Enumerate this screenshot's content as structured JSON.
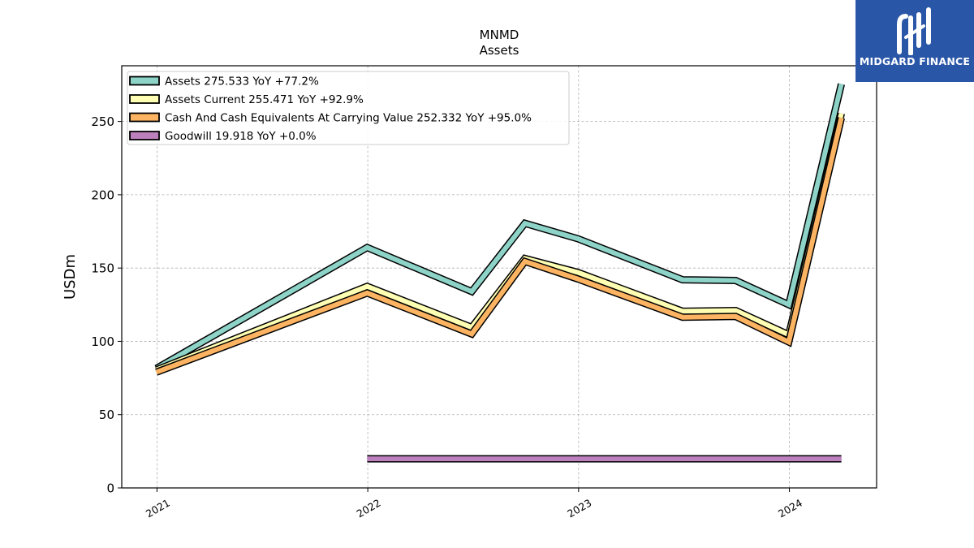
{
  "chart_data": {
    "type": "line",
    "title": "MNMD",
    "subtitle": "Assets",
    "ylabel": "USDm",
    "xlabel": "",
    "ylim": [
      0,
      288
    ],
    "xlim": [
      "2020-11-01",
      "2024-05-31"
    ],
    "yticks": [
      0,
      50,
      100,
      150,
      200,
      250
    ],
    "xticks": [
      {
        "date": "2021-01-01",
        "label": "2021"
      },
      {
        "date": "2022-01-01",
        "label": "2022"
      },
      {
        "date": "2023-01-01",
        "label": "2023"
      },
      {
        "date": "2024-01-01",
        "label": "2024"
      }
    ],
    "grid": true,
    "legend_position": "top-left",
    "series": [
      {
        "name": "Assets",
        "legend": "Assets  275.533 YoY +77.2%",
        "color": "#8dd3c7",
        "points": [
          [
            "2020-12-31",
            81.5
          ],
          [
            "2021-12-31",
            164
          ],
          [
            "2022-06-30",
            134
          ],
          [
            "2022-09-30",
            180.5
          ],
          [
            "2022-12-31",
            170
          ],
          [
            "2023-06-30",
            142
          ],
          [
            "2023-09-30",
            141.5
          ],
          [
            "2023-12-31",
            125
          ],
          [
            "2024-03-31",
            275.5
          ]
        ]
      },
      {
        "name": "Assets Current",
        "legend": "Assets Current  255.471 YoY +92.9%",
        "color": "#ffffb3",
        "points": [
          [
            "2020-12-31",
            80.5
          ],
          [
            "2021-12-31",
            137.5
          ],
          [
            "2022-06-30",
            109.5
          ],
          [
            "2022-09-30",
            156.5
          ],
          [
            "2022-12-31",
            147
          ],
          [
            "2023-06-30",
            120.5
          ],
          [
            "2023-09-30",
            121
          ],
          [
            "2023-12-31",
            104.5
          ],
          [
            "2024-03-31",
            255.5
          ]
        ]
      },
      {
        "name": "Cash And Cash Equivalents At Carrying Value",
        "legend": "Cash And Cash Equivalents At Carrying Value  252.332 YoY +95.0%",
        "color": "#fdb462",
        "points": [
          [
            "2020-12-31",
            79
          ],
          [
            "2021-12-31",
            133
          ],
          [
            "2022-06-30",
            105
          ],
          [
            "2022-09-30",
            154.5
          ],
          [
            "2022-12-31",
            142.5
          ],
          [
            "2023-06-30",
            116.5
          ],
          [
            "2023-09-30",
            117
          ],
          [
            "2023-12-31",
            99.5
          ],
          [
            "2024-03-31",
            252.5
          ]
        ]
      },
      {
        "name": "Goodwill",
        "legend": "Goodwill  19.918 YoY +0.0%",
        "color": "#bc80bd",
        "points": [
          [
            "2021-12-31",
            19.9
          ],
          [
            "2024-03-31",
            19.9
          ]
        ]
      }
    ]
  },
  "brand": {
    "name": "MIDGARD FINANCE",
    "background": "#2a56a8"
  }
}
